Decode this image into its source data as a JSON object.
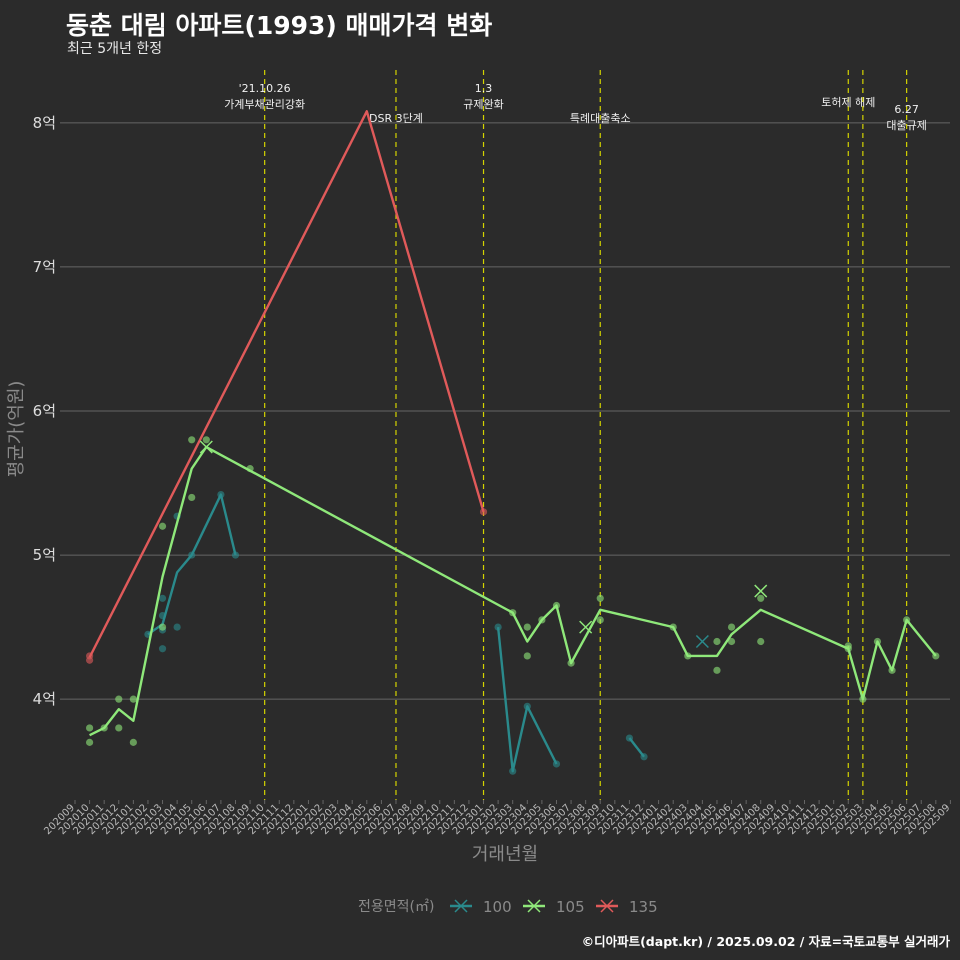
{
  "header": {
    "title": "동춘 대림 아파트(1993) 매매가격 변화",
    "subtitle": "최근 5개년 한정"
  },
  "footer": "©디아파트(dapt.kr) / 2025.09.02 / 자료=국토교통부 실거래가",
  "colors": {
    "background": "#2b2b2b",
    "grid": "#666666",
    "vline": "#d4d400",
    "series_100": "#2a8a8c",
    "series_105": "#8fe87a",
    "series_135": "#e05a5a",
    "text": "#dddddd",
    "muted": "#8a8a8a"
  },
  "chart_data": {
    "type": "line",
    "title": "동춘 대림 아파트(1993) 매매가격 변화",
    "subtitle": "최근 5개년 한정",
    "xlabel": "거래년월",
    "ylabel": "평균가(억원)",
    "x_ticks": [
      "202009",
      "202010",
      "202011",
      "202012",
      "202101",
      "202102",
      "202103",
      "202104",
      "202105",
      "202106",
      "202107",
      "202108",
      "202109",
      "202110",
      "202111",
      "202112",
      "202201",
      "202202",
      "202203",
      "202204",
      "202205",
      "202206",
      "202207",
      "202208",
      "202209",
      "202210",
      "202211",
      "202212",
      "202301",
      "202302",
      "202303",
      "202304",
      "202305",
      "202306",
      "202307",
      "202308",
      "202309",
      "202310",
      "202311",
      "202312",
      "202401",
      "202402",
      "202403",
      "202404",
      "202405",
      "202406",
      "202407",
      "202408",
      "202409",
      "202410",
      "202411",
      "202412",
      "202501",
      "202502",
      "202503",
      "202504",
      "202505",
      "202506",
      "202507",
      "202508",
      "202509"
    ],
    "y_ticks": [
      {
        "value": 4,
        "label": "4억"
      },
      {
        "value": 5,
        "label": "5억"
      },
      {
        "value": 6,
        "label": "6억"
      },
      {
        "value": 7,
        "label": "7억"
      },
      {
        "value": 8,
        "label": "8억"
      }
    ],
    "ylim": [
      3.3,
      8.45
    ],
    "grid": true,
    "legend": {
      "title": "전용면적(㎡)",
      "position": "bottom"
    },
    "series": [
      {
        "name": "100",
        "color": "#2a8a8c",
        "line": [
          {
            "x": "202102",
            "y": 4.45
          },
          {
            "x": "202103",
            "y": 4.52
          },
          {
            "x": "202104",
            "y": 4.88
          },
          {
            "x": "202105",
            "y": 5.0
          },
          {
            "x": "202107",
            "y": 5.42
          },
          {
            "x": "202108",
            "y": 5.0
          },
          null,
          {
            "x": "202302",
            "y": 4.5
          },
          {
            "x": "202303",
            "y": 3.5
          },
          {
            "x": "202304",
            "y": 3.95
          },
          {
            "x": "202306",
            "y": 3.55
          },
          null,
          {
            "x": "202311",
            "y": 3.73
          },
          {
            "x": "202312",
            "y": 3.6
          }
        ],
        "points": [
          {
            "x": "202102",
            "y": 4.45
          },
          {
            "x": "202103",
            "y": 4.7
          },
          {
            "x": "202103",
            "y": 4.58
          },
          {
            "x": "202103",
            "y": 4.48
          },
          {
            "x": "202103",
            "y": 4.35
          },
          {
            "x": "202104",
            "y": 4.5
          },
          {
            "x": "202104",
            "y": 5.27
          },
          {
            "x": "202105",
            "y": 5.0
          },
          {
            "x": "202107",
            "y": 5.42
          },
          {
            "x": "202108",
            "y": 5.0
          },
          {
            "x": "202302",
            "y": 4.5
          },
          {
            "x": "202303",
            "y": 3.5
          },
          {
            "x": "202304",
            "y": 3.95
          },
          {
            "x": "202306",
            "y": 3.55
          },
          {
            "x": "202311",
            "y": 3.73
          },
          {
            "x": "202312",
            "y": 3.6
          }
        ],
        "x_marks": [
          {
            "x": "202404",
            "y": 4.4
          }
        ]
      },
      {
        "name": "105",
        "color": "#8fe87a",
        "line": [
          {
            "x": "202010",
            "y": 3.75
          },
          {
            "x": "202011",
            "y": 3.8
          },
          {
            "x": "202012",
            "y": 3.93
          },
          {
            "x": "202101",
            "y": 3.85
          },
          {
            "x": "202103",
            "y": 4.85
          },
          {
            "x": "202105",
            "y": 5.6
          },
          {
            "x": "202106",
            "y": 5.75
          },
          {
            "x": "202303",
            "y": 4.6
          },
          {
            "x": "202304",
            "y": 4.4
          },
          {
            "x": "202305",
            "y": 4.55
          },
          {
            "x": "202306",
            "y": 4.65
          },
          {
            "x": "202307",
            "y": 4.25
          },
          {
            "x": "202309",
            "y": 4.62
          },
          {
            "x": "202402",
            "y": 4.5
          },
          {
            "x": "202403",
            "y": 4.3
          },
          {
            "x": "202405",
            "y": 4.3
          },
          {
            "x": "202406",
            "y": 4.45
          },
          {
            "x": "202408",
            "y": 4.62
          },
          {
            "x": "202502",
            "y": 4.35
          },
          {
            "x": "202503",
            "y": 4.0
          },
          {
            "x": "202504",
            "y": 4.4
          },
          {
            "x": "202505",
            "y": 4.2
          },
          {
            "x": "202506",
            "y": 4.55
          },
          {
            "x": "202508",
            "y": 4.3
          }
        ],
        "points": [
          {
            "x": "202010",
            "y": 3.8
          },
          {
            "x": "202010",
            "y": 3.7
          },
          {
            "x": "202011",
            "y": 3.8
          },
          {
            "x": "202012",
            "y": 4.0
          },
          {
            "x": "202012",
            "y": 3.8
          },
          {
            "x": "202101",
            "y": 4.0
          },
          {
            "x": "202101",
            "y": 3.7
          },
          {
            "x": "202103",
            "y": 5.2
          },
          {
            "x": "202103",
            "y": 4.5
          },
          {
            "x": "202105",
            "y": 5.8
          },
          {
            "x": "202105",
            "y": 5.4
          },
          {
            "x": "202106",
            "y": 5.8
          },
          {
            "x": "202109",
            "y": 5.6
          },
          {
            "x": "202303",
            "y": 4.6
          },
          {
            "x": "202304",
            "y": 4.5
          },
          {
            "x": "202304",
            "y": 4.3
          },
          {
            "x": "202305",
            "y": 4.55
          },
          {
            "x": "202306",
            "y": 4.65
          },
          {
            "x": "202307",
            "y": 4.25
          },
          {
            "x": "202309",
            "y": 4.7
          },
          {
            "x": "202309",
            "y": 4.55
          },
          {
            "x": "202402",
            "y": 4.5
          },
          {
            "x": "202403",
            "y": 4.3
          },
          {
            "x": "202405",
            "y": 4.4
          },
          {
            "x": "202405",
            "y": 4.2
          },
          {
            "x": "202406",
            "y": 4.5
          },
          {
            "x": "202406",
            "y": 4.4
          },
          {
            "x": "202408",
            "y": 4.7
          },
          {
            "x": "202408",
            "y": 4.4
          },
          {
            "x": "202502",
            "y": 4.37
          },
          {
            "x": "202502",
            "y": 4.35
          },
          {
            "x": "202503",
            "y": 4.0
          },
          {
            "x": "202504",
            "y": 4.4
          },
          {
            "x": "202505",
            "y": 4.2
          },
          {
            "x": "202506",
            "y": 4.55
          },
          {
            "x": "202508",
            "y": 4.3
          }
        ],
        "x_marks": [
          {
            "x": "202106",
            "y": 5.75
          },
          {
            "x": "202308",
            "y": 4.5
          },
          {
            "x": "202408",
            "y": 4.75
          }
        ]
      },
      {
        "name": "135",
        "color": "#e05a5a",
        "line": [
          {
            "x": "202010",
            "y": 4.29
          },
          {
            "x": "202205",
            "y": 8.08
          },
          {
            "x": "202301",
            "y": 5.3
          }
        ],
        "points": [
          {
            "x": "202010",
            "y": 4.3
          },
          {
            "x": "202010",
            "y": 4.27
          },
          {
            "x": "202301",
            "y": 5.3
          }
        ],
        "x_marks": []
      }
    ],
    "vlines": [
      {
        "x": "202110",
        "label": [
          "'21.10.26",
          "가계부채관리강화"
        ],
        "tier": 0
      },
      {
        "x": "202207",
        "label": [
          "DSR 3단계"
        ],
        "tier": 2
      },
      {
        "x": "202301",
        "label": [
          "1.3",
          "규제완화"
        ],
        "tier": 0
      },
      {
        "x": "202309",
        "label": [
          "특례대출축소"
        ],
        "tier": 2
      },
      {
        "x": "202502",
        "label": [
          "토허제 해제"
        ],
        "tier": 1
      },
      {
        "x": "202503",
        "label": [],
        "tier": 0
      },
      {
        "x": "202506",
        "label": [
          "6.27",
          "대출규제"
        ],
        "tier": 3
      }
    ]
  }
}
